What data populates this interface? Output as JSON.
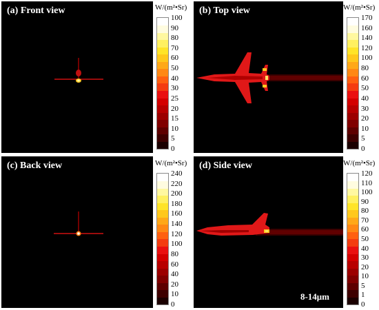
{
  "unit_label": "W/(m²•Sr)",
  "band_label": "8-14μm",
  "colors": [
    "#1a0000",
    "#3d0000",
    "#5e0000",
    "#800000",
    "#9c0000",
    "#b80000",
    "#d40000",
    "#ea1010",
    "#f43c10",
    "#ff6010",
    "#ff8814",
    "#ffa818",
    "#ffc81c",
    "#ffe428",
    "#fff060",
    "#fff8a0",
    "#fffce0",
    "#ffffff"
  ],
  "panels": [
    {
      "id": "front",
      "title": "(a) Front view",
      "ticks": [
        "100",
        "90",
        "80",
        "70",
        "60",
        "50",
        "40",
        "30",
        "25",
        "20",
        "15",
        "10",
        "5",
        "0"
      ]
    },
    {
      "id": "top",
      "title": "(b) Top view",
      "ticks": [
        "170",
        "160",
        "140",
        "120",
        "100",
        "80",
        "60",
        "50",
        "40",
        "30",
        "20",
        "10",
        "5",
        "0"
      ]
    },
    {
      "id": "back",
      "title": "(c) Back view",
      "ticks": [
        "240",
        "220",
        "200",
        "180",
        "160",
        "140",
        "120",
        "100",
        "80",
        "60",
        "40",
        "20",
        "10",
        "0"
      ]
    },
    {
      "id": "side",
      "title": "(d) Side view",
      "ticks": [
        "120",
        "110",
        "100",
        "90",
        "80",
        "70",
        "60",
        "50",
        "40",
        "30",
        "20",
        "10",
        "5",
        "1",
        "0"
      ]
    }
  ]
}
